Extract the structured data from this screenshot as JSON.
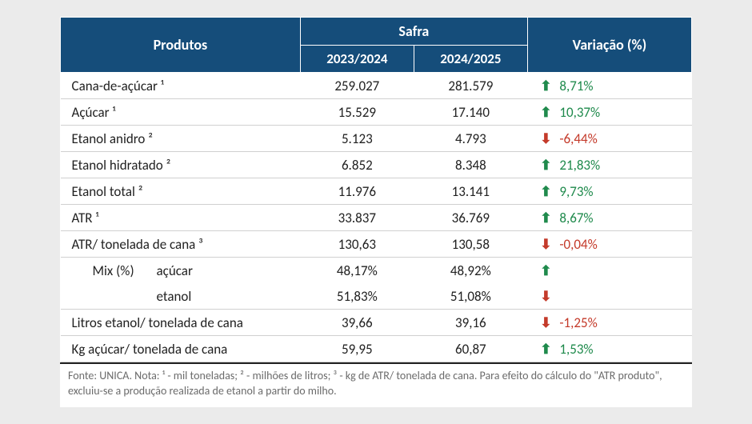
{
  "header": {
    "produtos": "Produtos",
    "safra": "Safra",
    "col1": "2023/2024",
    "col2": "2024/2025",
    "variacao": "Variação (%)"
  },
  "rows": [
    {
      "label": "Cana-de-açúcar ¹",
      "c1": "259.027",
      "c2": "281.579",
      "dir": "up",
      "var": "8,71%"
    },
    {
      "label": "Açúcar ¹",
      "c1": "15.529",
      "c2": "17.140",
      "dir": "up",
      "var": "10,37%"
    },
    {
      "label": "Etanol anidro ²",
      "c1": "5.123",
      "c2": "4.793",
      "dir": "down",
      "var": "-6,44%"
    },
    {
      "label": "Etanol hidratado ²",
      "c1": "6.852",
      "c2": "8.348",
      "dir": "up",
      "var": "21,83%"
    },
    {
      "label": "Etanol total ²",
      "c1": "11.976",
      "c2": "13.141",
      "dir": "up",
      "var": "9,73%"
    },
    {
      "label": "ATR ¹",
      "c1": "33.837",
      "c2": "36.769",
      "dir": "up",
      "var": "8,67%"
    },
    {
      "label": "ATR/ tonelada de cana ³",
      "c1": "130,63",
      "c2": "130,58",
      "dir": "down",
      "var": "-0,04%"
    }
  ],
  "mix": {
    "lead": "Mix (%)",
    "acucar_label": "açúcar",
    "etanol_label": "etanol",
    "acucar_c1": "48,17%",
    "acucar_c2": "48,92%",
    "acucar_dir": "up",
    "etanol_c1": "51,83%",
    "etanol_c2": "51,08%",
    "etanol_dir": "down"
  },
  "tail": [
    {
      "label": "Litros etanol/ tonelada de cana",
      "c1": "39,66",
      "c2": "39,16",
      "dir": "down",
      "var": "-1,25%"
    },
    {
      "label": "Kg açúcar/ tonelada de cana",
      "c1": "59,95",
      "c2": "60,87",
      "dir": "up",
      "var": "1,53%"
    }
  ],
  "footnote": "Fonte: UNICA. Nota: ¹ - mil toneladas; ² - milhões de litros; ³ - kg de ATR/ tonelada de cana. Para efeito do cálculo do \"ATR produto\", excluiu-se a produção realizada de etanol a partir do milho.",
  "colors": {
    "header_bg": "#154d7a",
    "up": "#1f8a4c",
    "down": "#c43a2a",
    "page_bg": "#ebebeb"
  }
}
